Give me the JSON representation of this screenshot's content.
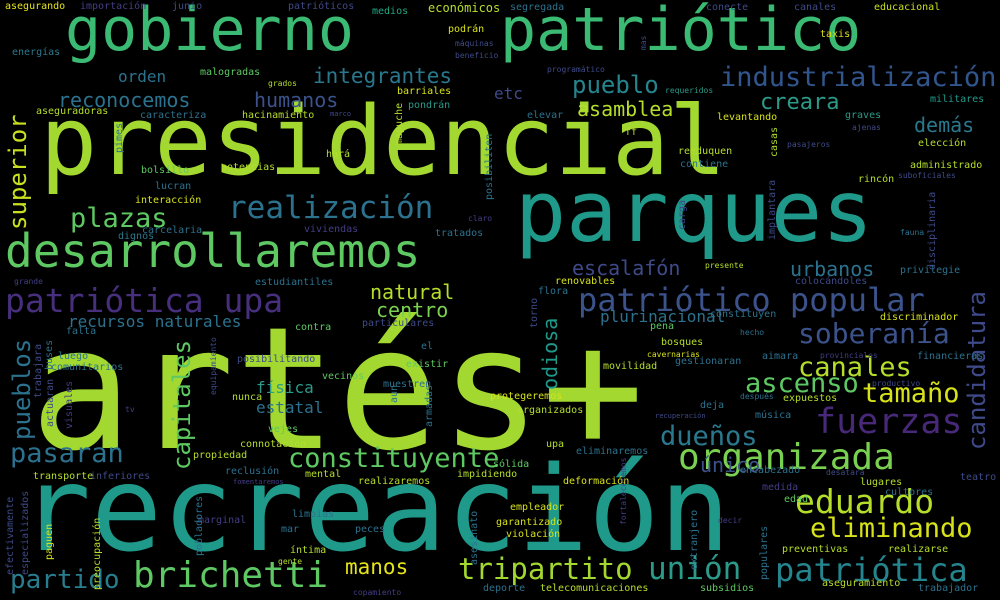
{
  "words": [
    {
      "text": "artés+",
      "color": "#a2d830"
    },
    {
      "text": "recreación",
      "color": "#1f9a8a"
    },
    {
      "text": "presidencial",
      "color": "#a2d830"
    },
    {
      "text": "parques",
      "color": "#1f9a8a"
    },
    {
      "text": "gobierno",
      "color": "#3aba72"
    },
    {
      "text": "patriótico",
      "color": "#3aba72"
    },
    {
      "text": "desarrollaremos",
      "color": "#5ec962"
    },
    {
      "text": "patriótica upa",
      "color": "#472f7d"
    },
    {
      "text": "patriótico popular",
      "color": "#3b528b"
    },
    {
      "text": "realización",
      "color": "#2c728e"
    },
    {
      "text": "industrialización",
      "color": "#31558d"
    },
    {
      "text": "fuerzas",
      "color": "#482878"
    },
    {
      "text": "organizada",
      "color": "#7ad151"
    },
    {
      "text": "brichetti",
      "color": "#5ec962"
    },
    {
      "text": "tripartito",
      "color": "#a2d830"
    },
    {
      "text": "unión",
      "color": "#2c9a89"
    },
    {
      "text": "patriótica",
      "color": "#25858e"
    },
    {
      "text": "eduardo",
      "color": "#b5de2b"
    },
    {
      "text": "eliminando",
      "color": "#d7e219"
    },
    {
      "text": "constituyente",
      "color": "#5ec962"
    },
    {
      "text": "soberanía",
      "color": "#3b528b"
    },
    {
      "text": "canales",
      "color": "#b5de2b"
    },
    {
      "text": "ascenso",
      "color": "#5ec962"
    },
    {
      "text": "tamaño",
      "color": "#d7e219"
    },
    {
      "text": "dueños",
      "color": "#2a788e"
    },
    {
      "text": "pasaran",
      "color": "#2c728e"
    },
    {
      "text": "partido",
      "color": "#287d8e"
    },
    {
      "text": "manos",
      "color": "#e5e419"
    },
    {
      "text": "plazas",
      "color": "#5ec962"
    },
    {
      "text": "pueblos",
      "color": "#2c728e"
    },
    {
      "text": "capitales",
      "color": "#5ec962"
    },
    {
      "text": "candidatura",
      "color": "#3e4a89"
    },
    {
      "text": "superior",
      "color": "#c8e020"
    },
    {
      "text": "integrantes",
      "color": "#2a788e"
    },
    {
      "text": "pueblo",
      "color": "#25858e"
    },
    {
      "text": "asamblea",
      "color": "#b5de2b"
    },
    {
      "text": "reconocemos",
      "color": "#2c728e"
    },
    {
      "text": "humanos",
      "color": "#3b528b"
    },
    {
      "text": "creara",
      "color": "#2c9a89"
    },
    {
      "text": "demás",
      "color": "#2a788e"
    },
    {
      "text": "urbanos",
      "color": "#2c728e"
    },
    {
      "text": "escalafón",
      "color": "#3e4a89"
    },
    {
      "text": "natural",
      "color": "#b5de2b"
    },
    {
      "text": "centro",
      "color": "#7ad151"
    },
    {
      "text": "recursos naturales",
      "color": "#2c728e"
    },
    {
      "text": "plurinacional",
      "color": "#2c728e"
    },
    {
      "text": "odiosa",
      "color": "#1f9a8a"
    },
    {
      "text": "único",
      "color": "#3b528b"
    },
    {
      "text": "estatal",
      "color": "#2c728e"
    },
    {
      "text": "física",
      "color": "#2c9a89"
    },
    {
      "text": "etc",
      "color": "#3e4a89"
    },
    {
      "text": "orden",
      "color": "#2c728e"
    },
    {
      "text": "asegurando",
      "color": "#e5e419"
    },
    {
      "text": "importación",
      "color": "#433e85"
    },
    {
      "text": "junio",
      "color": "#3e4a89"
    },
    {
      "text": "patrióticos",
      "color": "#3e4a89"
    },
    {
      "text": "medios",
      "color": "#22a884"
    },
    {
      "text": "económicos",
      "color": "#b5de2b"
    },
    {
      "text": "segregada",
      "color": "#2c728e"
    },
    {
      "text": "conecte",
      "color": "#3e4a89"
    },
    {
      "text": "canales",
      "color": "#3e4a89"
    },
    {
      "text": "educacional",
      "color": "#c8e020"
    },
    {
      "text": "energías",
      "color": "#2a788e"
    },
    {
      "text": "podrán",
      "color": "#d7e219"
    },
    {
      "text": "máquinas",
      "color": "#3e4a89"
    },
    {
      "text": "beneficio",
      "color": "#3e4a89"
    },
    {
      "text": "mas",
      "color": "#3e4a89"
    },
    {
      "text": "taxis",
      "color": "#d7e219"
    },
    {
      "text": "malogradas",
      "color": "#5ec962"
    },
    {
      "text": "grados",
      "color": "#b5de2b"
    },
    {
      "text": "programático",
      "color": "#3e4a89"
    },
    {
      "text": "militares",
      "color": "#1f9a8a"
    },
    {
      "text": "barriales",
      "color": "#d7e219"
    },
    {
      "text": "requeridos",
      "color": "#2c9a89"
    },
    {
      "text": "aseguradoras",
      "color": "#b5de2b"
    },
    {
      "text": "pondrán",
      "color": "#2c9a89"
    },
    {
      "text": "marco",
      "color": "#3e4a89"
    },
    {
      "text": "caracteriza",
      "color": "#2c728e"
    },
    {
      "text": "hacinamiento",
      "color": "#b5de2b"
    },
    {
      "text": "elevar",
      "color": "#2c728e"
    },
    {
      "text": "levantando",
      "color": "#d7e219"
    },
    {
      "text": "graves",
      "color": "#2c9a89"
    },
    {
      "text": "ajenas",
      "color": "#3e4a89"
    },
    {
      "text": "hará",
      "color": "#b5de2b"
    },
    {
      "text": "reeduquen",
      "color": "#b5de2b"
    },
    {
      "text": "contiene",
      "color": "#2c728e"
    },
    {
      "text": "pasajeros",
      "color": "#3e4a89"
    },
    {
      "text": "rincón",
      "color": "#b5de2b"
    },
    {
      "text": "elección",
      "color": "#b5de2b"
    },
    {
      "text": "administrado",
      "color": "#b5de2b"
    },
    {
      "text": "suboficiales",
      "color": "#3e4a89"
    },
    {
      "text": "potencias",
      "color": "#b5de2b"
    },
    {
      "text": "bolsillo",
      "color": "#5ec962"
    },
    {
      "text": "lucran",
      "color": "#2c728e"
    },
    {
      "text": "interacción",
      "color": "#d7e219"
    },
    {
      "text": "dignos",
      "color": "#2a788e"
    },
    {
      "text": "carcelaria",
      "color": "#2c728e"
    },
    {
      "text": "viviendas",
      "color": "#433e85"
    },
    {
      "text": "tratados",
      "color": "#2c728e"
    },
    {
      "text": "claro",
      "color": "#433e85"
    },
    {
      "text": "carga",
      "color": "#3e4a89"
    },
    {
      "text": "implantara",
      "color": "#3e4a89"
    },
    {
      "text": "fauna",
      "color": "#2c728e"
    },
    {
      "text": "disciplinaria",
      "color": "#3e4a89"
    },
    {
      "text": "presente",
      "color": "#b5de2b"
    },
    {
      "text": "privilegie",
      "color": "#2c728e"
    },
    {
      "text": "grande",
      "color": "#433e85"
    },
    {
      "text": "estudiantiles",
      "color": "#2c728e"
    },
    {
      "text": "flora",
      "color": "#2c728e"
    },
    {
      "text": "renovables",
      "color": "#d7e219"
    },
    {
      "text": "colocándoles",
      "color": "#3e4a89"
    },
    {
      "text": "falta",
      "color": "#2c728e"
    },
    {
      "text": "contra",
      "color": "#5ec962"
    },
    {
      "text": "particulares",
      "color": "#3e4a89"
    },
    {
      "text": "torno",
      "color": "#3e4a89"
    },
    {
      "text": "constituyen",
      "color": "#2c728e"
    },
    {
      "text": "discriminador",
      "color": "#d7e219"
    },
    {
      "text": "pena",
      "color": "#5ec962"
    },
    {
      "text": "hecho",
      "color": "#2c728e"
    },
    {
      "text": "posibilitando",
      "color": "#3e4a89"
    },
    {
      "text": "bosques",
      "color": "#b5de2b"
    },
    {
      "text": "cavernarias",
      "color": "#d7e219"
    },
    {
      "text": "aimara",
      "color": "#2c728e"
    },
    {
      "text": "provinciales",
      "color": "#433e85"
    },
    {
      "text": "financieras",
      "color": "#2c728e"
    },
    {
      "text": "comunitarios",
      "color": "#2c728e"
    },
    {
      "text": "vecinos",
      "color": "#5ec962"
    },
    {
      "text": "existir",
      "color": "#5ec962"
    },
    {
      "text": "movilidad",
      "color": "#b5de2b"
    },
    {
      "text": "gestionaran",
      "color": "#2c728e"
    },
    {
      "text": "productivo",
      "color": "#3e4a89"
    },
    {
      "text": "muestren",
      "color": "#2c728e"
    },
    {
      "text": "expuestos",
      "color": "#b5de2b"
    },
    {
      "text": "después",
      "color": "#2c728e"
    },
    {
      "text": "nunca",
      "color": "#b5de2b"
    },
    {
      "text": "protegeremos",
      "color": "#d7e219"
    },
    {
      "text": "deja",
      "color": "#2c728e"
    },
    {
      "text": "organizados",
      "color": "#b5de2b"
    },
    {
      "text": "música",
      "color": "#2c728e"
    },
    {
      "text": "recuperación",
      "color": "#3e4a89"
    },
    {
      "text": "tv",
      "color": "#433e85"
    },
    {
      "text": "vejes",
      "color": "#5ec962"
    },
    {
      "text": "connotación",
      "color": "#b5de2b"
    },
    {
      "text": "upa",
      "color": "#b5de2b"
    },
    {
      "text": "eliminaremos",
      "color": "#2c728e"
    },
    {
      "text": "encabezado",
      "color": "#2c728e"
    },
    {
      "text": "desatara",
      "color": "#3e4a89"
    },
    {
      "text": "inferiores",
      "color": "#3e4a89"
    },
    {
      "text": "propiedad",
      "color": "#b5de2b"
    },
    {
      "text": "reclusión",
      "color": "#2c728e"
    },
    {
      "text": "mental",
      "color": "#b5de2b"
    },
    {
      "text": "impidiendo",
      "color": "#b5de2b"
    },
    {
      "text": "sólida",
      "color": "#5ec962"
    },
    {
      "text": "lugares",
      "color": "#b5de2b"
    },
    {
      "text": "transporte",
      "color": "#b5de2b"
    },
    {
      "text": "fomentaremos",
      "color": "#433e85"
    },
    {
      "text": "realizaremos",
      "color": "#b5de2b"
    },
    {
      "text": "deformación",
      "color": "#d7e219"
    },
    {
      "text": "medida",
      "color": "#433e85"
    },
    {
      "text": "edad",
      "color": "#5ec962"
    },
    {
      "text": "teatro",
      "color": "#3e4a89"
    },
    {
      "text": "cultores",
      "color": "#2c728e"
    },
    {
      "text": "marginal",
      "color": "#433e85"
    },
    {
      "text": "limpias",
      "color": "#2c728e"
    },
    {
      "text": "empleador",
      "color": "#d7e219"
    },
    {
      "text": "garantizado",
      "color": "#d7e219"
    },
    {
      "text": "violación",
      "color": "#d7e219"
    },
    {
      "text": "decir",
      "color": "#433e85"
    },
    {
      "text": "mar",
      "color": "#2c728e"
    },
    {
      "text": "peces",
      "color": "#2c728e"
    },
    {
      "text": "íntima",
      "color": "#b5de2b"
    },
    {
      "text": "preventivas",
      "color": "#b5de2b"
    },
    {
      "text": "realizarse",
      "color": "#b5de2b"
    },
    {
      "text": "gente",
      "color": "#b5de2b"
    },
    {
      "text": "deporte",
      "color": "#2c728e"
    },
    {
      "text": "telecomunicaciones",
      "color": "#b5de2b"
    },
    {
      "text": "subsidios",
      "color": "#5ec962"
    },
    {
      "text": "aseguramiento",
      "color": "#b5de2b"
    },
    {
      "text": "trabajador",
      "color": "#2c728e"
    },
    {
      "text": "copamiento",
      "color": "#433e85"
    },
    {
      "text": "efectivamente",
      "color": "#3e4a89"
    },
    {
      "text": "especializados",
      "color": "#3e4a89"
    },
    {
      "text": "paguen",
      "color": "#d7e219"
    },
    {
      "text": "preocupación",
      "color": "#b5de2b"
    },
    {
      "text": "pobladores",
      "color": "#2c728e"
    },
    {
      "text": "asesinato",
      "color": "#2c728e"
    },
    {
      "text": "fortaleceremos",
      "color": "#433e85"
    },
    {
      "text": "extranjero",
      "color": "#2c728e"
    },
    {
      "text": "populares",
      "color": "#2c728e"
    },
    {
      "text": "trabajara",
      "color": "#3e4a89"
    },
    {
      "text": "actuaran",
      "color": "#3e4a89"
    },
    {
      "text": "visuales",
      "color": "#433e85"
    },
    {
      "text": "buses",
      "color": "#2c728e"
    },
    {
      "text": "luego",
      "color": "#2c728e"
    },
    {
      "text": "equipamiento",
      "color": "#3e4a89"
    },
    {
      "text": "armadas",
      "color": "#2c728e"
    },
    {
      "text": "aun",
      "color": "#2c728e"
    },
    {
      "text": "el",
      "color": "#2c728e"
    },
    {
      "text": "posibiliten",
      "color": "#2c728e"
    },
    {
      "text": "mapuche",
      "color": "#b5de2b"
    },
    {
      "text": "casas",
      "color": "#b5de2b"
    },
    {
      "text": "ff",
      "color": "#b5de2b"
    },
    {
      "text": "pimes",
      "color": "#2c728e"
    }
  ]
}
